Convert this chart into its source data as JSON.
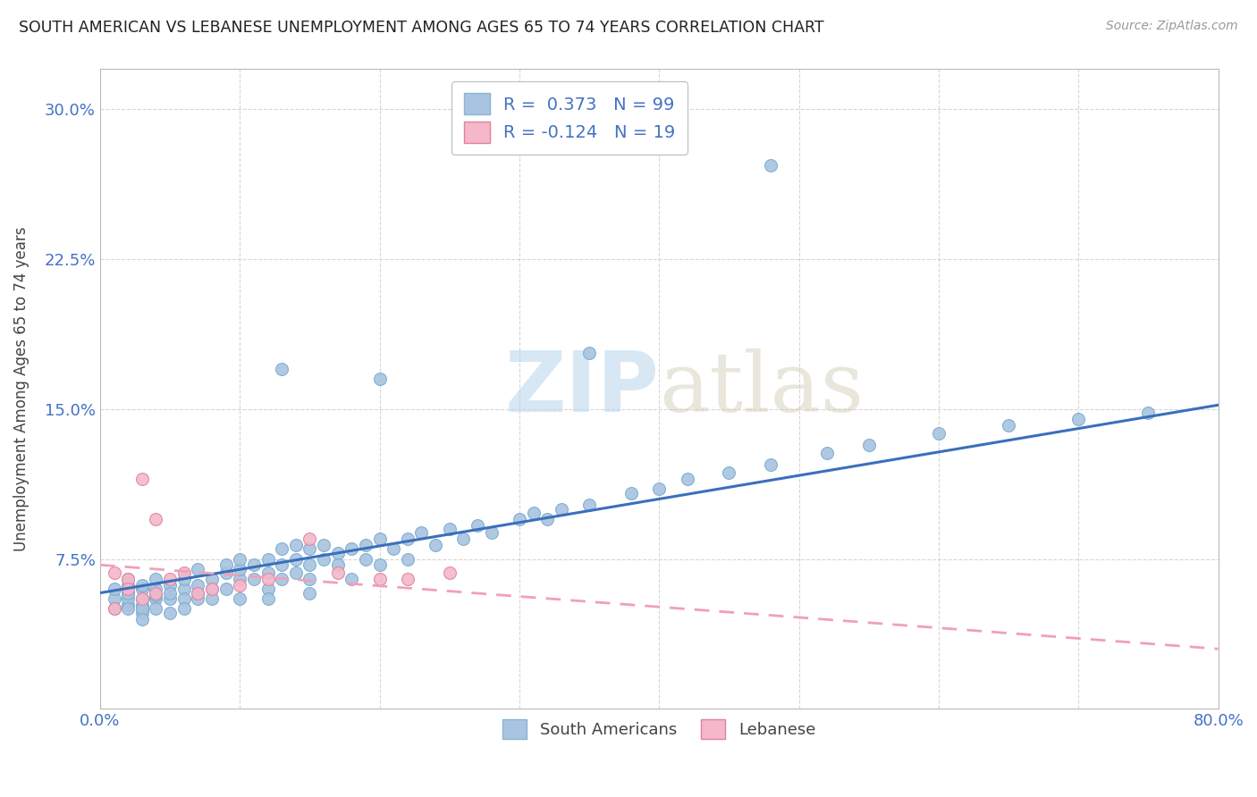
{
  "title": "SOUTH AMERICAN VS LEBANESE UNEMPLOYMENT AMONG AGES 65 TO 74 YEARS CORRELATION CHART",
  "source": "Source: ZipAtlas.com",
  "ylabel": "Unemployment Among Ages 65 to 74 years",
  "xlim": [
    0.0,
    0.8
  ],
  "ylim": [
    0.0,
    0.32
  ],
  "xticks": [
    0.0,
    0.1,
    0.2,
    0.3,
    0.4,
    0.5,
    0.6,
    0.7,
    0.8
  ],
  "xticklabels": [
    "0.0%",
    "",
    "",
    "",
    "",
    "",
    "",
    "",
    "80.0%"
  ],
  "yticks": [
    0.0,
    0.075,
    0.15,
    0.225,
    0.3
  ],
  "yticklabels": [
    "",
    "7.5%",
    "15.0%",
    "22.5%",
    "30.0%"
  ],
  "south_american_color": "#a8c4e0",
  "lebanese_color": "#f4b8c8",
  "south_american_line_color": "#3a6fbd",
  "lebanese_line_color": "#f0a0b8",
  "r_sa": 0.373,
  "n_sa": 99,
  "r_leb": -0.124,
  "n_leb": 19,
  "sa_line_x0": 0.0,
  "sa_line_y0": 0.058,
  "sa_line_x1": 0.8,
  "sa_line_y1": 0.152,
  "leb_line_x0": 0.0,
  "leb_line_y0": 0.072,
  "leb_line_x1": 0.8,
  "leb_line_y1": 0.03,
  "south_americans_x": [
    0.01,
    0.01,
    0.01,
    0.02,
    0.02,
    0.02,
    0.02,
    0.02,
    0.02,
    0.02,
    0.03,
    0.03,
    0.03,
    0.03,
    0.03,
    0.03,
    0.03,
    0.04,
    0.04,
    0.04,
    0.04,
    0.04,
    0.05,
    0.05,
    0.05,
    0.05,
    0.06,
    0.06,
    0.06,
    0.06,
    0.07,
    0.07,
    0.07,
    0.07,
    0.08,
    0.08,
    0.08,
    0.09,
    0.09,
    0.09,
    0.1,
    0.1,
    0.1,
    0.1,
    0.11,
    0.11,
    0.12,
    0.12,
    0.12,
    0.12,
    0.13,
    0.13,
    0.13,
    0.14,
    0.14,
    0.14,
    0.15,
    0.15,
    0.15,
    0.15,
    0.16,
    0.16,
    0.17,
    0.17,
    0.18,
    0.18,
    0.19,
    0.19,
    0.2,
    0.2,
    0.21,
    0.22,
    0.22,
    0.23,
    0.24,
    0.25,
    0.26,
    0.27,
    0.28,
    0.3,
    0.31,
    0.32,
    0.33,
    0.35,
    0.38,
    0.4,
    0.42,
    0.45,
    0.48,
    0.52,
    0.55,
    0.6,
    0.65,
    0.7,
    0.75,
    0.13,
    0.2,
    0.35,
    0.48
  ],
  "south_americans_y": [
    0.055,
    0.06,
    0.05,
    0.052,
    0.058,
    0.062,
    0.055,
    0.05,
    0.065,
    0.058,
    0.048,
    0.055,
    0.06,
    0.052,
    0.062,
    0.05,
    0.045,
    0.055,
    0.06,
    0.065,
    0.05,
    0.057,
    0.055,
    0.062,
    0.048,
    0.058,
    0.06,
    0.055,
    0.065,
    0.05,
    0.058,
    0.062,
    0.07,
    0.055,
    0.06,
    0.065,
    0.055,
    0.068,
    0.072,
    0.06,
    0.065,
    0.07,
    0.055,
    0.075,
    0.065,
    0.072,
    0.06,
    0.068,
    0.075,
    0.055,
    0.072,
    0.08,
    0.065,
    0.075,
    0.068,
    0.082,
    0.072,
    0.065,
    0.08,
    0.058,
    0.075,
    0.082,
    0.078,
    0.072,
    0.08,
    0.065,
    0.082,
    0.075,
    0.085,
    0.072,
    0.08,
    0.085,
    0.075,
    0.088,
    0.082,
    0.09,
    0.085,
    0.092,
    0.088,
    0.095,
    0.098,
    0.095,
    0.1,
    0.102,
    0.108,
    0.11,
    0.115,
    0.118,
    0.122,
    0.128,
    0.132,
    0.138,
    0.142,
    0.145,
    0.148,
    0.17,
    0.165,
    0.178,
    0.272
  ],
  "lebanese_x": [
    0.01,
    0.01,
    0.02,
    0.02,
    0.03,
    0.03,
    0.04,
    0.04,
    0.05,
    0.06,
    0.07,
    0.08,
    0.1,
    0.12,
    0.15,
    0.17,
    0.2,
    0.22,
    0.25
  ],
  "lebanese_y": [
    0.068,
    0.05,
    0.065,
    0.06,
    0.115,
    0.055,
    0.095,
    0.058,
    0.065,
    0.068,
    0.058,
    0.06,
    0.062,
    0.065,
    0.085,
    0.068,
    0.065,
    0.065,
    0.068
  ]
}
